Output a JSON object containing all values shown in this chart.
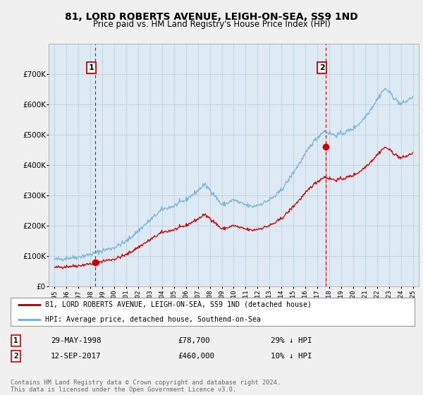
{
  "title_line1": "81, LORD ROBERTS AVENUE, LEIGH-ON-SEA, SS9 1ND",
  "title_line2": "Price paid vs. HM Land Registry's House Price Index (HPI)",
  "hpi_color": "#7ab4d8",
  "sale_color": "#cc0000",
  "dashed_color": "#cc0000",
  "plot_bg_color": "#ddeaf4",
  "background_color": "#f0f0f0",
  "ylim": [
    0,
    800000
  ],
  "yticks": [
    0,
    100000,
    200000,
    300000,
    400000,
    500000,
    600000,
    700000
  ],
  "sale1_year": 1998.38,
  "sale1_price": 78700,
  "sale1_label": "1",
  "sale1_date": "29-MAY-1998",
  "sale1_pct": "29% ↓ HPI",
  "sale2_year": 2017.7,
  "sale2_price": 460000,
  "sale2_label": "2",
  "sale2_date": "12-SEP-2017",
  "sale2_pct": "10% ↓ HPI",
  "legend_line1": "81, LORD ROBERTS AVENUE, LEIGH-ON-SEA, SS9 1ND (detached house)",
  "legend_line2": "HPI: Average price, detached house, Southend-on-Sea",
  "footer": "Contains HM Land Registry data © Crown copyright and database right 2024.\nThis data is licensed under the Open Government Licence v3.0."
}
